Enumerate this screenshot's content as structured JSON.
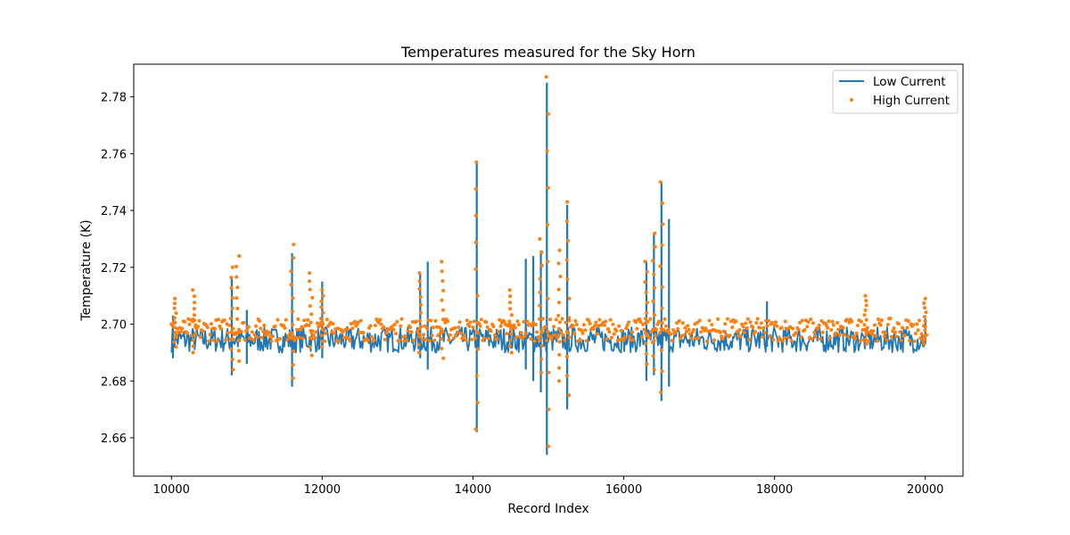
{
  "chart_data": {
    "type": "line",
    "title": "Temperatures measured for the Sky Horn",
    "xlabel": "Record Index",
    "ylabel": "Temperature (K)",
    "xlim": [
      9500,
      20500
    ],
    "ylim": [
      2.6465,
      2.7915
    ],
    "x_ticks": [
      10000,
      12000,
      14000,
      16000,
      18000,
      20000
    ],
    "x_tick_labels": [
      "10000",
      "12000",
      "14000",
      "16000",
      "18000",
      "20000"
    ],
    "y_ticks": [
      2.66,
      2.68,
      2.7,
      2.72,
      2.74,
      2.76,
      2.78
    ],
    "y_tick_labels": [
      "2.66",
      "2.68",
      "2.70",
      "2.72",
      "2.74",
      "2.76",
      "2.78"
    ],
    "grid": false,
    "legend_position": "top-right",
    "series": [
      {
        "name": "Low Current",
        "style": "line",
        "color": "#1f77b4",
        "baseline": 2.695,
        "band": [
          2.69,
          2.699
        ],
        "x": [
          10020,
          10800,
          11000,
          11600,
          12000,
          13300,
          13400,
          14050,
          14700,
          14800,
          14900,
          14980,
          15250,
          16300,
          16400,
          16500,
          16600,
          17900,
          20000
        ],
        "peak_y": [
          2.703,
          2.716,
          2.705,
          2.725,
          2.715,
          2.718,
          2.722,
          2.757,
          2.723,
          2.724,
          2.726,
          2.785,
          2.742,
          2.722,
          2.732,
          2.75,
          2.737,
          2.708,
          2.702
        ],
        "trough_y": [
          2.688,
          2.682,
          2.686,
          2.678,
          2.688,
          2.688,
          2.684,
          2.662,
          2.684,
          2.68,
          2.676,
          2.654,
          2.67,
          2.68,
          2.682,
          2.673,
          2.678,
          2.692,
          2.693
        ]
      },
      {
        "name": "High Current",
        "style": "scatter",
        "color": "#ff7f0e",
        "baseline": 2.698,
        "band": [
          2.694,
          2.702
        ],
        "x": [
          10050,
          10300,
          10800,
          10880,
          11600,
          11850,
          12000,
          13300,
          13600,
          14050,
          14500,
          14900,
          14985,
          15150,
          15260,
          16300,
          16400,
          16500,
          19200,
          20000
        ],
        "peak_y": [
          2.709,
          2.712,
          2.72,
          2.724,
          2.728,
          2.718,
          2.712,
          2.718,
          2.722,
          2.757,
          2.712,
          2.73,
          2.787,
          2.726,
          2.743,
          2.722,
          2.732,
          2.75,
          2.71,
          2.709
        ],
        "trough_y": [
          2.692,
          2.69,
          2.684,
          2.687,
          2.681,
          2.689,
          2.692,
          2.69,
          2.688,
          2.663,
          2.69,
          2.683,
          2.657,
          2.68,
          2.675,
          2.686,
          2.684,
          2.676,
          2.693,
          2.693
        ]
      }
    ]
  }
}
